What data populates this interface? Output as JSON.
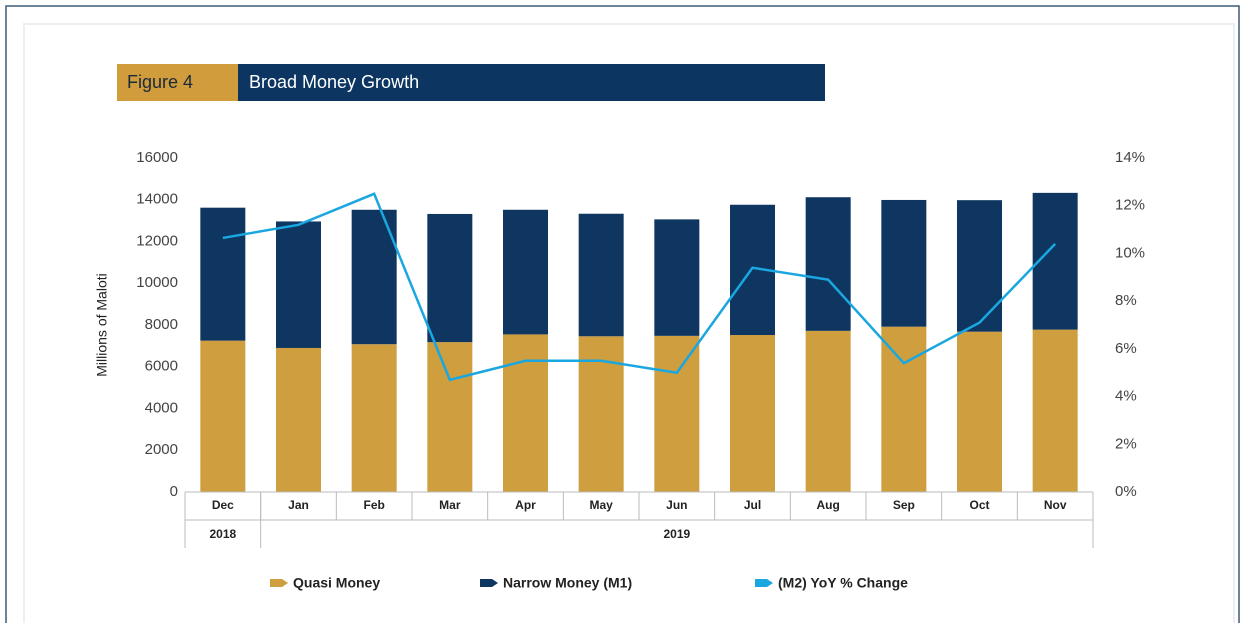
{
  "chart_data": {
    "type": "bar",
    "figure_label": "Figure 4",
    "title": "Broad Money Growth",
    "y_label": "Millions of Maloti",
    "category_groups": [
      {
        "label": "2018",
        "months": [
          "Dec"
        ]
      },
      {
        "label": "2019",
        "months": [
          "Jan",
          "Feb",
          "Mar",
          "Apr",
          "May",
          "Jun",
          "Jul",
          "Aug",
          "Sep",
          "Oct",
          "Nov"
        ]
      }
    ],
    "stacked": true,
    "series": [
      {
        "name": "Quasi Money",
        "type": "bar",
        "color": "#cf9e3e",
        "values": [
          7250,
          6900,
          7080,
          7180,
          7550,
          7460,
          7480,
          7520,
          7720,
          7920,
          7680,
          7780
        ]
      },
      {
        "name": "Narrow Money (M1)",
        "type": "bar",
        "color": "#0e3661",
        "values": [
          6370,
          6060,
          6440,
          6140,
          5970,
          5870,
          5580,
          6240,
          6400,
          6070,
          6300,
          6550
        ]
      },
      {
        "name": "(M2)  YoY % Change",
        "type": "line",
        "axis": "y2",
        "color": "#1aa7e0",
        "values": [
          10.65,
          11.2,
          12.5,
          4.7,
          5.5,
          5.5,
          5.0,
          9.4,
          8.9,
          5.4,
          7.1,
          10.4
        ]
      }
    ],
    "ylim": [
      0,
      16000
    ],
    "yticks": [
      0,
      2000,
      4000,
      6000,
      8000,
      10000,
      12000,
      14000,
      16000
    ],
    "y2lim": [
      0,
      14
    ],
    "y2ticks": [
      {
        "value": 0,
        "label": "0%"
      },
      {
        "value": 2,
        "label": "2%"
      },
      {
        "value": 4,
        "label": "4%"
      },
      {
        "value": 6,
        "label": "6%"
      },
      {
        "value": 8,
        "label": "8%"
      },
      {
        "value": 10,
        "label": "10%"
      },
      {
        "value": 12,
        "label": "12%"
      },
      {
        "value": 14,
        "label": "14%"
      }
    ],
    "legend": "bottom"
  }
}
